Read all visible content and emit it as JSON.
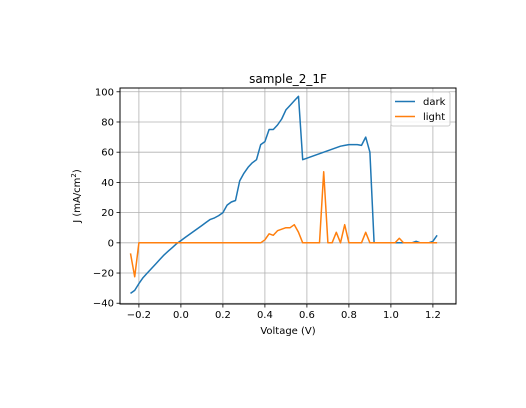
{
  "chart_data": {
    "type": "line",
    "title": "sample_2_1F",
    "xlabel": "Voltage (V)",
    "ylabel_main": "J (mA/cm",
    "ylabel_sup": "2",
    "ylabel_close": ")",
    "xlim": [
      -0.29,
      1.31
    ],
    "ylim": [
      -40.5,
      102.5
    ],
    "xticks": [
      -0.2,
      0.0,
      0.2,
      0.4,
      0.6,
      0.8,
      1.0,
      1.2
    ],
    "xtick_labels": [
      "−0.2",
      "0.0",
      "0.2",
      "0.4",
      "0.6",
      "0.8",
      "1.0",
      "1.2"
    ],
    "yticks": [
      -40,
      -20,
      0,
      20,
      40,
      60,
      80,
      100
    ],
    "ytick_labels": [
      "−40",
      "−20",
      "0",
      "20",
      "40",
      "60",
      "80",
      "100"
    ],
    "grid": true,
    "legend_position": "top-right",
    "series": [
      {
        "name": "dark",
        "color": "#1f77b4",
        "x": [
          -0.24,
          -0.22,
          -0.2,
          -0.18,
          -0.16,
          -0.14,
          -0.12,
          -0.1,
          -0.08,
          -0.06,
          -0.04,
          -0.02,
          0.0,
          0.02,
          0.04,
          0.06,
          0.08,
          0.1,
          0.12,
          0.14,
          0.16,
          0.18,
          0.2,
          0.22,
          0.24,
          0.26,
          0.28,
          0.3,
          0.32,
          0.34,
          0.36,
          0.38,
          0.4,
          0.42,
          0.44,
          0.46,
          0.48,
          0.5,
          0.52,
          0.54,
          0.56,
          0.58,
          0.6,
          0.62,
          0.64,
          0.66,
          0.68,
          0.7,
          0.72,
          0.74,
          0.76,
          0.78,
          0.8,
          0.82,
          0.84,
          0.86,
          0.88,
          0.9,
          0.92,
          0.94,
          0.96,
          0.98,
          1.0,
          1.02,
          1.04,
          1.06,
          1.08,
          1.1,
          1.12,
          1.14,
          1.16,
          1.18,
          1.2,
          1.22
        ],
        "y": [
          -33.5,
          -31.5,
          -27,
          -23,
          -20,
          -17,
          -14,
          -11,
          -8,
          -5.5,
          -3,
          -0.5,
          1.5,
          3.5,
          5.5,
          7.5,
          9.5,
          11.5,
          13.5,
          15.5,
          16.5,
          18,
          20,
          25,
          27,
          28,
          41,
          46,
          50,
          53,
          55,
          65,
          67,
          75,
          75,
          78,
          82,
          88,
          91,
          94,
          97,
          55,
          56,
          57,
          58,
          59,
          60,
          61,
          62,
          63,
          64,
          64.5,
          65,
          65,
          65,
          64.5,
          70,
          60,
          0,
          0,
          0,
          0,
          0,
          0,
          0,
          0,
          0,
          0,
          1,
          0,
          0,
          0,
          1,
          5
        ],
        "comment_x_alignment": "dark series sampled every 0.02 V"
      },
      {
        "name": "light",
        "color": "#ff7f0e",
        "x": [
          -0.24,
          -0.22,
          -0.2,
          -0.18,
          -0.16,
          -0.14,
          -0.12,
          -0.1,
          -0.08,
          -0.06,
          -0.04,
          -0.02,
          0.0,
          0.02,
          0.04,
          0.06,
          0.08,
          0.1,
          0.12,
          0.14,
          0.16,
          0.18,
          0.2,
          0.22,
          0.24,
          0.26,
          0.28,
          0.3,
          0.32,
          0.34,
          0.36,
          0.38,
          0.4,
          0.42,
          0.44,
          0.46,
          0.48,
          0.5,
          0.52,
          0.54,
          0.56,
          0.58,
          0.6,
          0.62,
          0.64,
          0.66,
          0.68,
          0.7,
          0.72,
          0.74,
          0.76,
          0.78,
          0.8,
          0.82,
          0.84,
          0.86,
          0.88,
          0.9,
          0.92,
          0.94,
          0.96,
          0.98,
          1.0,
          1.02,
          1.04,
          1.06,
          1.08,
          1.1,
          1.12,
          1.14,
          1.16,
          1.18,
          1.2,
          1.22
        ],
        "y": [
          -7,
          -22.5,
          0,
          0,
          0,
          0,
          0,
          0,
          0,
          0,
          0,
          0,
          0,
          0,
          0,
          0,
          0,
          0,
          0,
          0,
          0,
          0,
          0,
          0,
          0,
          0,
          0,
          0,
          0,
          0,
          0,
          0,
          2,
          6,
          5,
          8,
          9,
          10,
          10,
          12,
          7,
          0,
          0,
          0,
          0,
          0,
          47,
          0,
          0,
          7,
          0,
          12,
          0,
          0,
          0,
          0,
          7,
          0,
          0,
          0,
          0,
          0,
          0,
          0,
          3,
          0,
          0,
          0,
          0,
          0,
          0,
          0,
          0,
          0
        ]
      }
    ]
  }
}
